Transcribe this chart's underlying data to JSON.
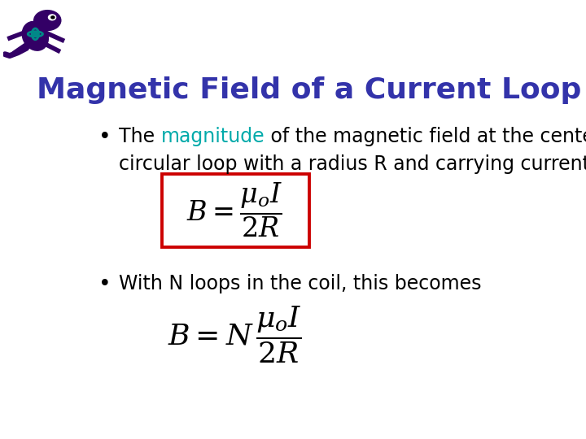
{
  "title": "Magnetic Field of a Current Loop",
  "title_color": "#3333AA",
  "title_fontsize": 26,
  "background_color": "#ffffff",
  "bullet1_highlight_color": "#00AAAA",
  "bullet2": "With N loops in the coil, this becomes",
  "formula_box_color": "#CC0000",
  "text_color": "#000000",
  "bullet_fontsize": 17,
  "formula1_fontsize": 24,
  "formula2_fontsize": 26,
  "gecko_color": "#330066",
  "teal_color": "#008888"
}
